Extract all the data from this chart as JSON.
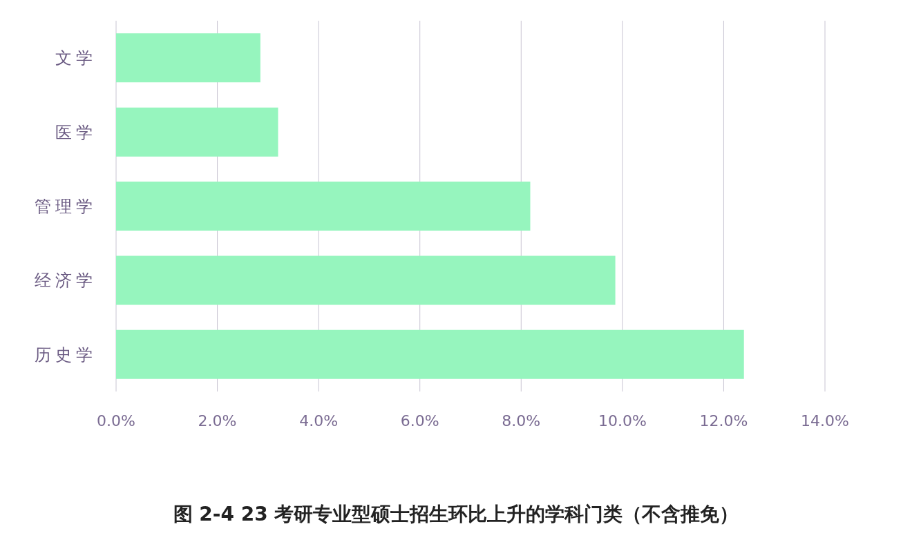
{
  "chart_data": {
    "type": "bar",
    "orientation": "horizontal",
    "title": "图 2-4 23 考研专业型硕士招生环比上升的学科门类（不含推免）",
    "categories": [
      "文学",
      "医学",
      "管理学",
      "经济学",
      "历史学"
    ],
    "values": [
      2.85,
      3.2,
      8.18,
      9.86,
      12.4
    ],
    "color": "#96f5be",
    "xlim": [
      0,
      14
    ],
    "xticks": [
      {
        "value": 0,
        "label": "0.0%"
      },
      {
        "value": 2,
        "label": "2.0%"
      },
      {
        "value": 4,
        "label": "4.0%"
      },
      {
        "value": 6,
        "label": "6.0%"
      },
      {
        "value": 8,
        "label": "8.0%"
      },
      {
        "value": 10,
        "label": "10.0%"
      },
      {
        "value": 12,
        "label": "12.0%"
      },
      {
        "value": 14,
        "label": "14.0%"
      }
    ],
    "grid": "x"
  }
}
